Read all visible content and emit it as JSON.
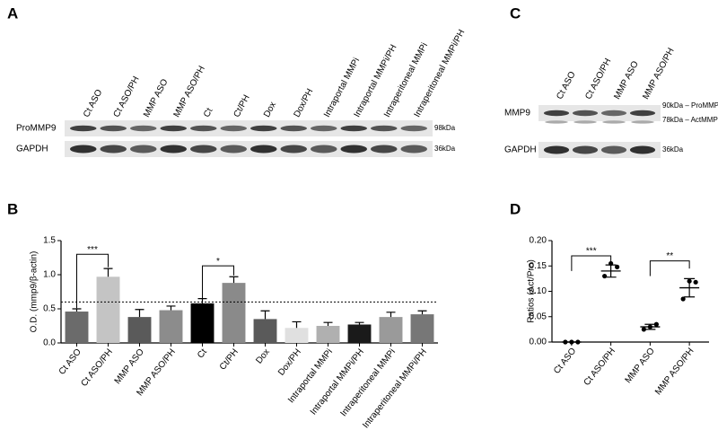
{
  "panels": [
    "A",
    "B",
    "C",
    "D"
  ],
  "blot_a": {
    "lanes": [
      "Ct ASO",
      "Ct ASO/PH",
      "MMP ASO",
      "MMP ASO/PH",
      "Ct",
      "Ct/PH",
      "Dox",
      "Dox/PH",
      "Intraportal MMPi",
      "Intraportal MMPi/PH",
      "Intraperitoneal MMPi",
      "Intraperitoneal MMPi/PH"
    ],
    "rows": [
      {
        "label": "ProMMP9",
        "sizes": [
          "98kDa"
        ]
      },
      {
        "label": "GAPDH",
        "sizes": [
          "36kDa"
        ]
      }
    ]
  },
  "blot_c": {
    "lanes": [
      "Ct ASO",
      "Ct ASO/PH",
      "MMP ASO",
      "MMP ASO/PH"
    ],
    "rows": [
      {
        "label": "MMP9",
        "sizes": [
          "90kDa – ProMMP9",
          "78kDa – ActMMP9"
        ]
      },
      {
        "label": "GAPDH",
        "sizes": [
          "36kDa"
        ]
      }
    ]
  },
  "chart_data": [
    {
      "type": "bar",
      "ylabel": "O.D. (mmp9/β-actin)",
      "categories": [
        "Ct ASO",
        "Ct ASO/PH",
        "MMP ASO",
        "MMP ASO/PH",
        "Ct",
        "Ct/PH",
        "Dox",
        "Dox/PH",
        "Intraportal MMPi",
        "Intraportal MMPi/PH",
        "Intraperitoneal MMPi",
        "Intraperitoneal MMPi/PH"
      ],
      "values": [
        0.46,
        0.97,
        0.38,
        0.48,
        0.58,
        0.88,
        0.35,
        0.22,
        0.25,
        0.27,
        0.38,
        0.42
      ],
      "errors": [
        0.04,
        0.12,
        0.11,
        0.06,
        0.07,
        0.09,
        0.12,
        0.09,
        0.05,
        0.03,
        0.07,
        0.05
      ],
      "colors": [
        "#6b6b6b",
        "#c4c4c4",
        "#5a5a5a",
        "#8c8c8c",
        "#000000",
        "#8a8a8a",
        "#5a5a5a",
        "#e0e0e0",
        "#b0b0b0",
        "#1a1a1a",
        "#9a9a9a",
        "#777777"
      ],
      "ylim": [
        0,
        1.5
      ],
      "yticks": [
        {
          "value": 0,
          "label": "0.0"
        },
        0.5,
        {
          "value": 1,
          "label": "1.0"
        },
        1.5
      ],
      "reference_line": 0.6,
      "significance": [
        {
          "text": "***",
          "between": [
            "Ct ASO",
            "Ct ASO/PH"
          ],
          "y": 1.3
        },
        {
          "text": "*",
          "between": [
            "Ct",
            "Ct/PH"
          ],
          "y": 1.13
        }
      ]
    },
    {
      "type": "dot",
      "ylabel": "Ratios (Act/Pro)",
      "categories": [
        "Ct ASO",
        "Ct ASO/PH",
        "MMP ASO",
        "MMP ASO/PH"
      ],
      "points": [
        [
          0,
          0,
          0
        ],
        [
          0.13,
          0.155,
          0.148
        ],
        [
          0.025,
          0.03,
          0.035
        ],
        [
          0.085,
          0.12,
          0.118
        ]
      ],
      "means": [
        0,
        0.14,
        0.03,
        0.107
      ],
      "errors": [
        0,
        0.012,
        0.005,
        0.018
      ],
      "color": "#000000",
      "ylim": [
        0,
        0.2
      ],
      "yticks": [
        {
          "value": 0,
          "label": "0.00"
        },
        {
          "value": 0.05,
          "label": "0.05"
        },
        {
          "value": 0.1,
          "label": "0.10"
        },
        {
          "value": 0.15,
          "label": "0.15"
        },
        {
          "value": 0.2,
          "label": "0.20"
        }
      ],
      "significance": [
        {
          "text": "***",
          "between": [
            "Ct ASO",
            "Ct ASO/PH"
          ],
          "y": 0.17
        },
        {
          "text": "**",
          "between": [
            "MMP ASO",
            "MMP ASO/PH"
          ],
          "y": 0.16
        }
      ]
    }
  ]
}
